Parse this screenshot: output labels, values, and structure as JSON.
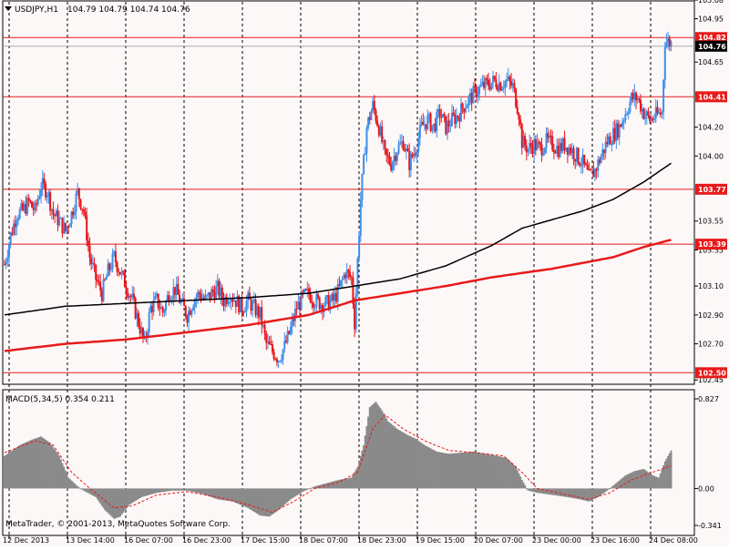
{
  "colors": {
    "background": "#fdf8f8",
    "grid": "#000000",
    "bull_candle": "#3f8ee8",
    "bear_candle": "#e8131a",
    "hline": "#e81a1a",
    "ma_slow": "#e81a1a",
    "ma_fast": "#000000",
    "macd_hist": "#8a8a8a",
    "macd_signal": "#e81a1a",
    "label_red_bg": "#e81a1a",
    "label_black_bg": "#000000",
    "label_text": "#ffffff",
    "text": "#000000"
  },
  "header": {
    "symbol_tf": "USDJPY,H1",
    "ohlc": "104.79 104.79 104.74 104.76"
  },
  "subwindow": {
    "title": "MACD(5,34,5) 0.354 0.211"
  },
  "copyright": "MetaTrader, © 2001-2013, MetaQuotes Software Corp.",
  "chart_data": {
    "type": "candlestick",
    "symbol": "USDJPY",
    "timeframe": "H1",
    "price_axis": {
      "range": [
        102.42,
        105.08
      ],
      "ticks": [
        "105.08",
        "104.95",
        "104.65",
        "104.20",
        "104.00",
        "103.55",
        "103.35",
        "103.10",
        "102.90",
        "102.70",
        "102.45"
      ]
    },
    "time_axis": {
      "ticks": [
        "12 Dec 2013",
        "13 Dec 14:00",
        "16 Dec 07:00",
        "16 Dec 23:00",
        "17 Dec 15:00",
        "18 Dec 07:00",
        "18 Dec 23:00",
        "19 Dec 15:00",
        "20 Dec 07:00",
        "23 Dec 00:00",
        "23 Dec 16:00",
        "24 Dec 08:00"
      ]
    },
    "horizontal_lines": [
      {
        "value": 104.82,
        "label": "104.82"
      },
      {
        "value": 104.41,
        "label": "104.41"
      },
      {
        "value": 103.77,
        "label": "103.77"
      },
      {
        "value": 103.39,
        "label": "103.39"
      },
      {
        "value": 102.5,
        "label": "102.50"
      }
    ],
    "current_price": {
      "value": 104.76,
      "label": "104.76"
    },
    "bid_line": 104.76,
    "close_path": [
      [
        0,
        103.25
      ],
      [
        4,
        103.45
      ],
      [
        8,
        103.6
      ],
      [
        12,
        103.62
      ],
      [
        16,
        103.68
      ],
      [
        20,
        103.62
      ],
      [
        24,
        103.8
      ],
      [
        28,
        103.76
      ],
      [
        32,
        103.6
      ],
      [
        36,
        103.55
      ],
      [
        40,
        103.48
      ],
      [
        44,
        103.6
      ],
      [
        48,
        103.75
      ],
      [
        52,
        103.62
      ],
      [
        56,
        103.3
      ],
      [
        60,
        103.15
      ],
      [
        64,
        103.05
      ],
      [
        68,
        103.2
      ],
      [
        72,
        103.3
      ],
      [
        76,
        103.2
      ],
      [
        80,
        103.1
      ],
      [
        84,
        103.0
      ],
      [
        88,
        102.85
      ],
      [
        92,
        102.7
      ],
      [
        96,
        102.95
      ],
      [
        100,
        103.0
      ],
      [
        104,
        102.92
      ],
      [
        108,
        103.05
      ],
      [
        112,
        103.08
      ],
      [
        116,
        102.98
      ],
      [
        120,
        102.9
      ],
      [
        124,
        103.0
      ],
      [
        128,
        103.05
      ],
      [
        132,
        103.0
      ],
      [
        136,
        103.05
      ],
      [
        140,
        103.08
      ],
      [
        144,
        103.0
      ],
      [
        148,
        103.05
      ],
      [
        152,
        103.0
      ],
      [
        156,
        102.95
      ],
      [
        160,
        103.0
      ],
      [
        164,
        102.95
      ],
      [
        168,
        102.9
      ],
      [
        172,
        102.7
      ],
      [
        176,
        102.65
      ],
      [
        180,
        102.6
      ],
      [
        184,
        102.68
      ],
      [
        188,
        102.8
      ],
      [
        192,
        102.95
      ],
      [
        196,
        103.02
      ],
      [
        200,
        103.05
      ],
      [
        204,
        103.0
      ],
      [
        208,
        102.98
      ],
      [
        212,
        102.98
      ],
      [
        216,
        103.0
      ],
      [
        220,
        103.08
      ],
      [
        224,
        103.2
      ],
      [
        228,
        103.15
      ],
      [
        230,
        102.85
      ],
      [
        234,
        103.7
      ],
      [
        238,
        104.2
      ],
      [
        242,
        104.35
      ],
      [
        246,
        104.2
      ],
      [
        250,
        104.0
      ],
      [
        254,
        103.95
      ],
      [
        258,
        104.05
      ],
      [
        262,
        104.1
      ],
      [
        266,
        103.95
      ],
      [
        270,
        104.05
      ],
      [
        274,
        104.2
      ],
      [
        278,
        104.25
      ],
      [
        282,
        104.2
      ],
      [
        286,
        104.3
      ],
      [
        290,
        104.2
      ],
      [
        294,
        104.25
      ],
      [
        298,
        104.28
      ],
      [
        302,
        104.35
      ],
      [
        306,
        104.4
      ],
      [
        310,
        104.45
      ],
      [
        314,
        104.48
      ],
      [
        318,
        104.5
      ],
      [
        322,
        104.52
      ],
      [
        326,
        104.5
      ],
      [
        330,
        104.52
      ],
      [
        334,
        104.48
      ],
      [
        338,
        104.3
      ],
      [
        340,
        104.1
      ],
      [
        344,
        104.05
      ],
      [
        348,
        104.08
      ],
      [
        352,
        104.05
      ],
      [
        356,
        104.1
      ],
      [
        360,
        104.08
      ],
      [
        364,
        104.05
      ],
      [
        368,
        104.08
      ],
      [
        372,
        104.05
      ],
      [
        376,
        104.0
      ],
      [
        380,
        103.95
      ],
      [
        384,
        103.85
      ],
      [
        388,
        103.9
      ],
      [
        392,
        104.0
      ],
      [
        396,
        104.1
      ],
      [
        400,
        104.15
      ],
      [
        404,
        104.2
      ],
      [
        408,
        104.3
      ],
      [
        412,
        104.4
      ],
      [
        416,
        104.4
      ],
      [
        420,
        104.3
      ],
      [
        424,
        104.25
      ],
      [
        428,
        104.28
      ],
      [
        432,
        104.3
      ],
      [
        434,
        104.8
      ],
      [
        438,
        104.78
      ]
    ],
    "ma_fast_path": [
      [
        0,
        102.9
      ],
      [
        40,
        102.96
      ],
      [
        80,
        102.98
      ],
      [
        120,
        103.0
      ],
      [
        160,
        103.02
      ],
      [
        200,
        103.05
      ],
      [
        230,
        103.1
      ],
      [
        260,
        103.15
      ],
      [
        290,
        103.24
      ],
      [
        320,
        103.38
      ],
      [
        340,
        103.5
      ],
      [
        380,
        103.62
      ],
      [
        400,
        103.7
      ],
      [
        420,
        103.82
      ],
      [
        438,
        103.95
      ]
    ],
    "ma_slow_path": [
      [
        0,
        102.65
      ],
      [
        40,
        102.7
      ],
      [
        80,
        102.73
      ],
      [
        120,
        102.78
      ],
      [
        160,
        102.83
      ],
      [
        200,
        102.9
      ],
      [
        230,
        103.0
      ],
      [
        260,
        103.05
      ],
      [
        290,
        103.1
      ],
      [
        320,
        103.16
      ],
      [
        360,
        103.22
      ],
      [
        400,
        103.3
      ],
      [
        420,
        103.37
      ],
      [
        438,
        103.42
      ]
    ]
  },
  "macd_data": {
    "type": "histogram",
    "range": [
      -0.341,
      0.827
    ],
    "ticks": [
      "0.827",
      "0.00",
      "-0.341"
    ],
    "hist_path": [
      [
        0,
        0.3
      ],
      [
        10,
        0.4
      ],
      [
        18,
        0.45
      ],
      [
        24,
        0.48
      ],
      [
        30,
        0.42
      ],
      [
        36,
        0.3
      ],
      [
        42,
        0.1
      ],
      [
        48,
        0.02
      ],
      [
        52,
        -0.02
      ],
      [
        60,
        -0.08
      ],
      [
        66,
        -0.2
      ],
      [
        72,
        -0.28
      ],
      [
        76,
        -0.26
      ],
      [
        82,
        -0.15
      ],
      [
        90,
        -0.08
      ],
      [
        100,
        -0.04
      ],
      [
        110,
        -0.02
      ],
      [
        120,
        -0.02
      ],
      [
        130,
        -0.05
      ],
      [
        140,
        -0.1
      ],
      [
        150,
        -0.12
      ],
      [
        160,
        -0.18
      ],
      [
        168,
        -0.25
      ],
      [
        174,
        -0.26
      ],
      [
        180,
        -0.2
      ],
      [
        188,
        -0.1
      ],
      [
        196,
        -0.03
      ],
      [
        204,
        0.02
      ],
      [
        212,
        0.05
      ],
      [
        220,
        0.08
      ],
      [
        228,
        0.1
      ],
      [
        232,
        0.2
      ],
      [
        236,
        0.4
      ],
      [
        240,
        0.75
      ],
      [
        244,
        0.8
      ],
      [
        248,
        0.72
      ],
      [
        252,
        0.62
      ],
      [
        258,
        0.55
      ],
      [
        264,
        0.5
      ],
      [
        270,
        0.46
      ],
      [
        276,
        0.4
      ],
      [
        284,
        0.34
      ],
      [
        292,
        0.32
      ],
      [
        300,
        0.33
      ],
      [
        308,
        0.34
      ],
      [
        316,
        0.32
      ],
      [
        324,
        0.3
      ],
      [
        330,
        0.28
      ],
      [
        336,
        0.2
      ],
      [
        340,
        0.08
      ],
      [
        344,
        -0.02
      ],
      [
        350,
        -0.04
      ],
      [
        360,
        -0.06
      ],
      [
        370,
        -0.08
      ],
      [
        378,
        -0.1
      ],
      [
        384,
        -0.12
      ],
      [
        390,
        -0.08
      ],
      [
        396,
        -0.02
      ],
      [
        402,
        0.05
      ],
      [
        408,
        0.12
      ],
      [
        414,
        0.16
      ],
      [
        420,
        0.18
      ],
      [
        426,
        0.12
      ],
      [
        430,
        0.1
      ],
      [
        434,
        0.25
      ],
      [
        438,
        0.35
      ]
    ],
    "signal_path": [
      [
        0,
        0.33
      ],
      [
        20,
        0.44
      ],
      [
        32,
        0.4
      ],
      [
        44,
        0.15
      ],
      [
        56,
        0.0
      ],
      [
        72,
        -0.18
      ],
      [
        84,
        -0.16
      ],
      [
        100,
        -0.06
      ],
      [
        120,
        -0.03
      ],
      [
        140,
        -0.08
      ],
      [
        160,
        -0.15
      ],
      [
        176,
        -0.22
      ],
      [
        190,
        -0.12
      ],
      [
        204,
        0.0
      ],
      [
        220,
        0.06
      ],
      [
        232,
        0.15
      ],
      [
        242,
        0.55
      ],
      [
        250,
        0.68
      ],
      [
        262,
        0.55
      ],
      [
        276,
        0.44
      ],
      [
        292,
        0.35
      ],
      [
        310,
        0.33
      ],
      [
        328,
        0.3
      ],
      [
        340,
        0.15
      ],
      [
        350,
        0.0
      ],
      [
        370,
        -0.06
      ],
      [
        384,
        -0.1
      ],
      [
        398,
        -0.04
      ],
      [
        412,
        0.08
      ],
      [
        424,
        0.14
      ],
      [
        438,
        0.21
      ]
    ]
  }
}
